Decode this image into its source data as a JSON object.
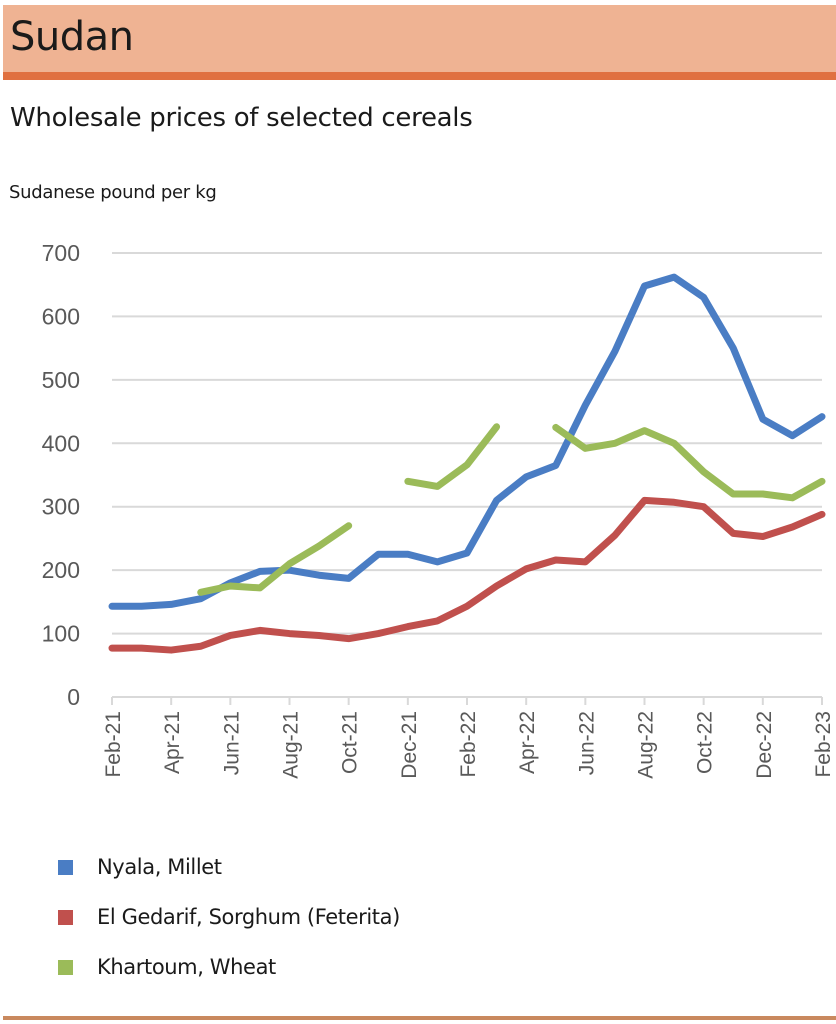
{
  "header": {
    "title": "Sudan"
  },
  "chart_data": {
    "type": "line",
    "title": "Wholesale prices of selected cereals",
    "ylabel": "Sudanese pound per kg",
    "xlabel": "",
    "ylim": [
      0,
      700
    ],
    "yticks": [
      "0",
      "100",
      "200",
      "300",
      "400",
      "500",
      "600",
      "700"
    ],
    "ytick_values": [
      0,
      100,
      200,
      300,
      400,
      500,
      600,
      700
    ],
    "grid": true,
    "legend_position": "bottom-left",
    "x": [
      "Feb-21",
      "Mar-21",
      "Apr-21",
      "May-21",
      "Jun-21",
      "Jul-21",
      "Aug-21",
      "Sep-21",
      "Oct-21",
      "Nov-21",
      "Dec-21",
      "Jan-22",
      "Feb-22",
      "Mar-22",
      "Apr-22",
      "May-22",
      "Jun-22",
      "Jul-22",
      "Aug-22",
      "Sep-22",
      "Oct-22",
      "Nov-22",
      "Dec-22",
      "Jan-23",
      "Feb-23"
    ],
    "xtick_labels": [
      "Feb-21",
      "Apr-21",
      "Jun-21",
      "Aug-21",
      "Oct-21",
      "Dec-21",
      "Feb-22",
      "Apr-22",
      "Jun-22",
      "Aug-22",
      "Oct-22",
      "Dec-22",
      "Feb-23"
    ],
    "series": [
      {
        "name": "Nyala, Millet",
        "color": "#4a7dc4",
        "values": [
          143,
          143,
          146,
          155,
          180,
          198,
          200,
          192,
          187,
          225,
          225,
          213,
          227,
          310,
          347,
          365,
          460,
          545,
          648,
          662,
          630,
          550,
          438,
          412,
          442
        ]
      },
      {
        "name": "El Gedarif, Sorghum (Feterita)",
        "color": "#c0504d",
        "values": [
          77,
          77,
          74,
          80,
          97,
          105,
          100,
          97,
          92,
          100,
          111,
          120,
          143,
          175,
          202,
          216,
          213,
          255,
          310,
          307,
          300,
          258,
          253,
          268,
          288
        ]
      },
      {
        "name": "Khartoum, Wheat",
        "color": "#9bbb59",
        "values": [
          null,
          null,
          null,
          165,
          175,
          172,
          210,
          238,
          270,
          null,
          340,
          332,
          366,
          426,
          null,
          425,
          392,
          400,
          420,
          400,
          355,
          320,
          320,
          314,
          340
        ]
      }
    ]
  }
}
